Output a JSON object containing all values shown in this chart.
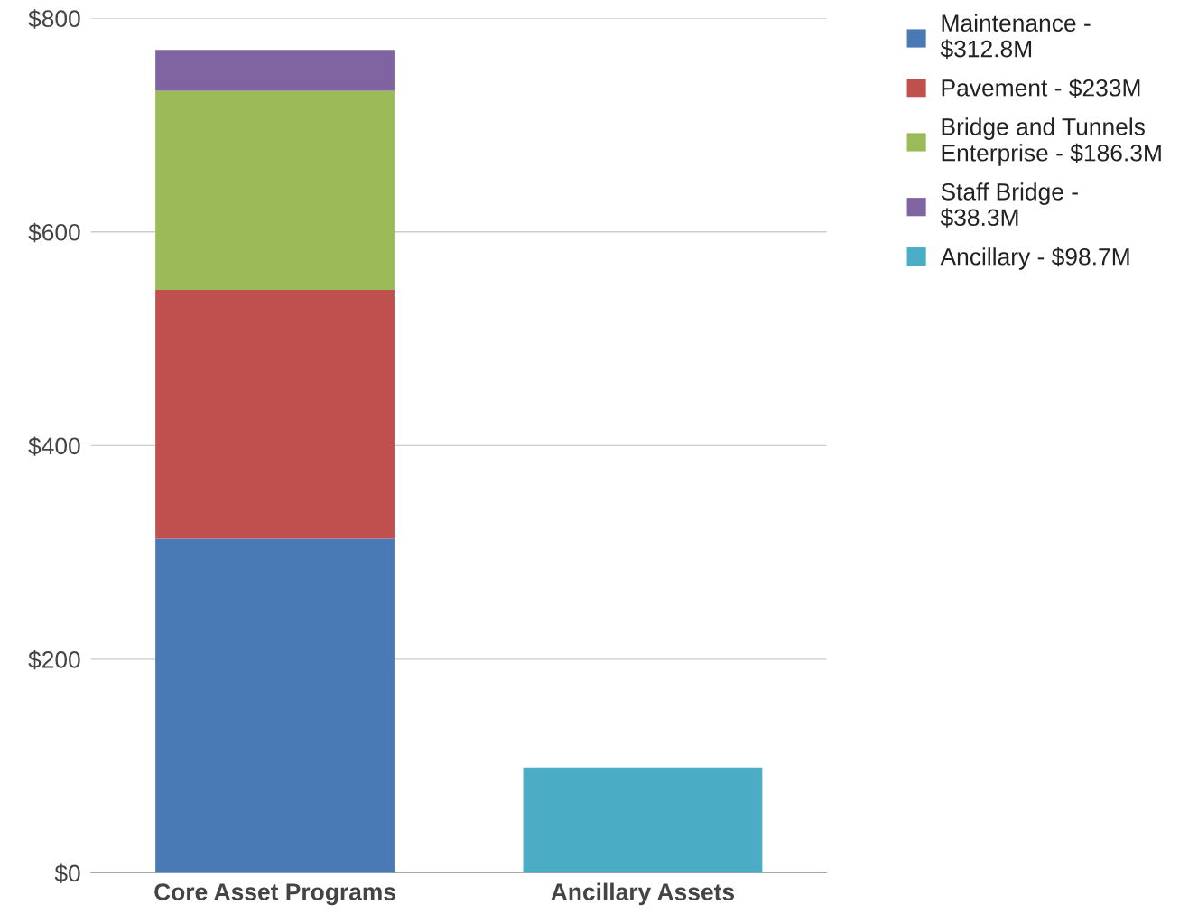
{
  "chart_data": {
    "type": "bar",
    "stacked": true,
    "categories": [
      "Core Asset Programs",
      "Ancillary Assets"
    ],
    "series": [
      {
        "name": "Maintenance - $312.8M",
        "color": "#4a7ab5",
        "values": [
          312.8,
          null
        ]
      },
      {
        "name": "Pavement - $233M",
        "color": "#c0504d",
        "values": [
          233,
          null
        ]
      },
      {
        "name": "Bridge and Tunnels Enterprise - $186.3M",
        "color": "#9bbb59",
        "values": [
          186.3,
          null
        ]
      },
      {
        "name": "Staff Bridge - $38.3M",
        "color": "#8064a2",
        "values": [
          38.3,
          null
        ]
      },
      {
        "name": "Ancillary - $98.7M",
        "color": "#4bacc6",
        "values": [
          null,
          98.7
        ]
      }
    ],
    "ylim": [
      0,
      800
    ],
    "yticks": [
      {
        "value": 0,
        "label": "$0"
      },
      {
        "value": 200,
        "label": "$200"
      },
      {
        "value": 400,
        "label": "$400"
      },
      {
        "value": 600,
        "label": "$600"
      },
      {
        "value": 800,
        "label": "$800"
      }
    ],
    "grid": "y",
    "legend": "top right"
  }
}
